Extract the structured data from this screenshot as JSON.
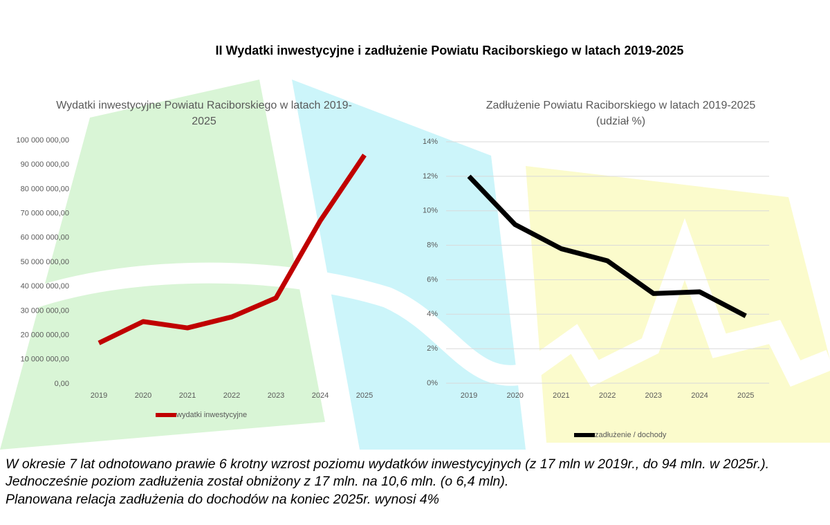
{
  "title": "II Wydatki inwestycyjne i zadłużenie Powiatu Raciborskiego w latach 2019-2025",
  "chart_data": [
    {
      "type": "line",
      "title": "Wydatki inwestycyjne Powiatu Raciborskiego w latach 2019-2025",
      "categories": [
        "2019",
        "2020",
        "2021",
        "2022",
        "2023",
        "2024",
        "2025"
      ],
      "series": [
        {
          "name": "wydatki inwestycyjne",
          "color": "#c00000",
          "values": [
            16800000,
            25600000,
            23000000,
            27500000,
            35300000,
            67000000,
            94000000
          ]
        }
      ],
      "ylim": [
        0,
        100000000
      ],
      "yticks": [
        {
          "value": 0,
          "label": "0,00"
        },
        {
          "value": 10000000,
          "label": "10 000 000,00"
        },
        {
          "value": 20000000,
          "label": "20 000 000,00"
        },
        {
          "value": 30000000,
          "label": "30 000 000,00"
        },
        {
          "value": 40000000,
          "label": "40 000 000,00"
        },
        {
          "value": 50000000,
          "label": "50 000 000,00"
        },
        {
          "value": 60000000,
          "label": "60 000 000,00"
        },
        {
          "value": 70000000,
          "label": "70 000 000,00"
        },
        {
          "value": 80000000,
          "label": "80 000 000,00"
        },
        {
          "value": 90000000,
          "label": "90 000 000,00"
        },
        {
          "value": 100000000,
          "label": "100 000 000,00"
        }
      ],
      "grid": false,
      "legend": "bottom"
    },
    {
      "type": "line",
      "title": "Zadłużenie Powiatu Raciborskiego w latach 2019-2025",
      "subtitle": "(udział %)",
      "categories": [
        "2019",
        "2020",
        "2021",
        "2022",
        "2023",
        "2024",
        "2025"
      ],
      "series": [
        {
          "name": "zadłużenie / dochody",
          "color": "#000000",
          "values": [
            12,
            9.2,
            7.8,
            7.1,
            5.2,
            5.3,
            3.9
          ]
        }
      ],
      "ylim": [
        0,
        14
      ],
      "yticks": [
        {
          "value": 0,
          "label": "0%"
        },
        {
          "value": 2,
          "label": "2%"
        },
        {
          "value": 4,
          "label": "4%"
        },
        {
          "value": 6,
          "label": "6%"
        },
        {
          "value": 8,
          "label": "8%"
        },
        {
          "value": 10,
          "label": "10%"
        },
        {
          "value": 12,
          "label": "12%"
        },
        {
          "value": 14,
          "label": "14%"
        }
      ],
      "grid": true,
      "legend": "bottom"
    }
  ],
  "text": [
    "W okresie 7 lat odnotowano prawie 6 krotny wzrost poziomu wydatków inwestycyjnych (z 17 mln w 2019r., do 94 mln. w 2025r.). Jednocześnie poziom zadłużenia został obniżony z 17 mln. na 10,6 mln. (o 6,4 mln).",
    "Planowana relacja zadłużenia do dochodów na koniec 2025r. wynosi 4%"
  ]
}
